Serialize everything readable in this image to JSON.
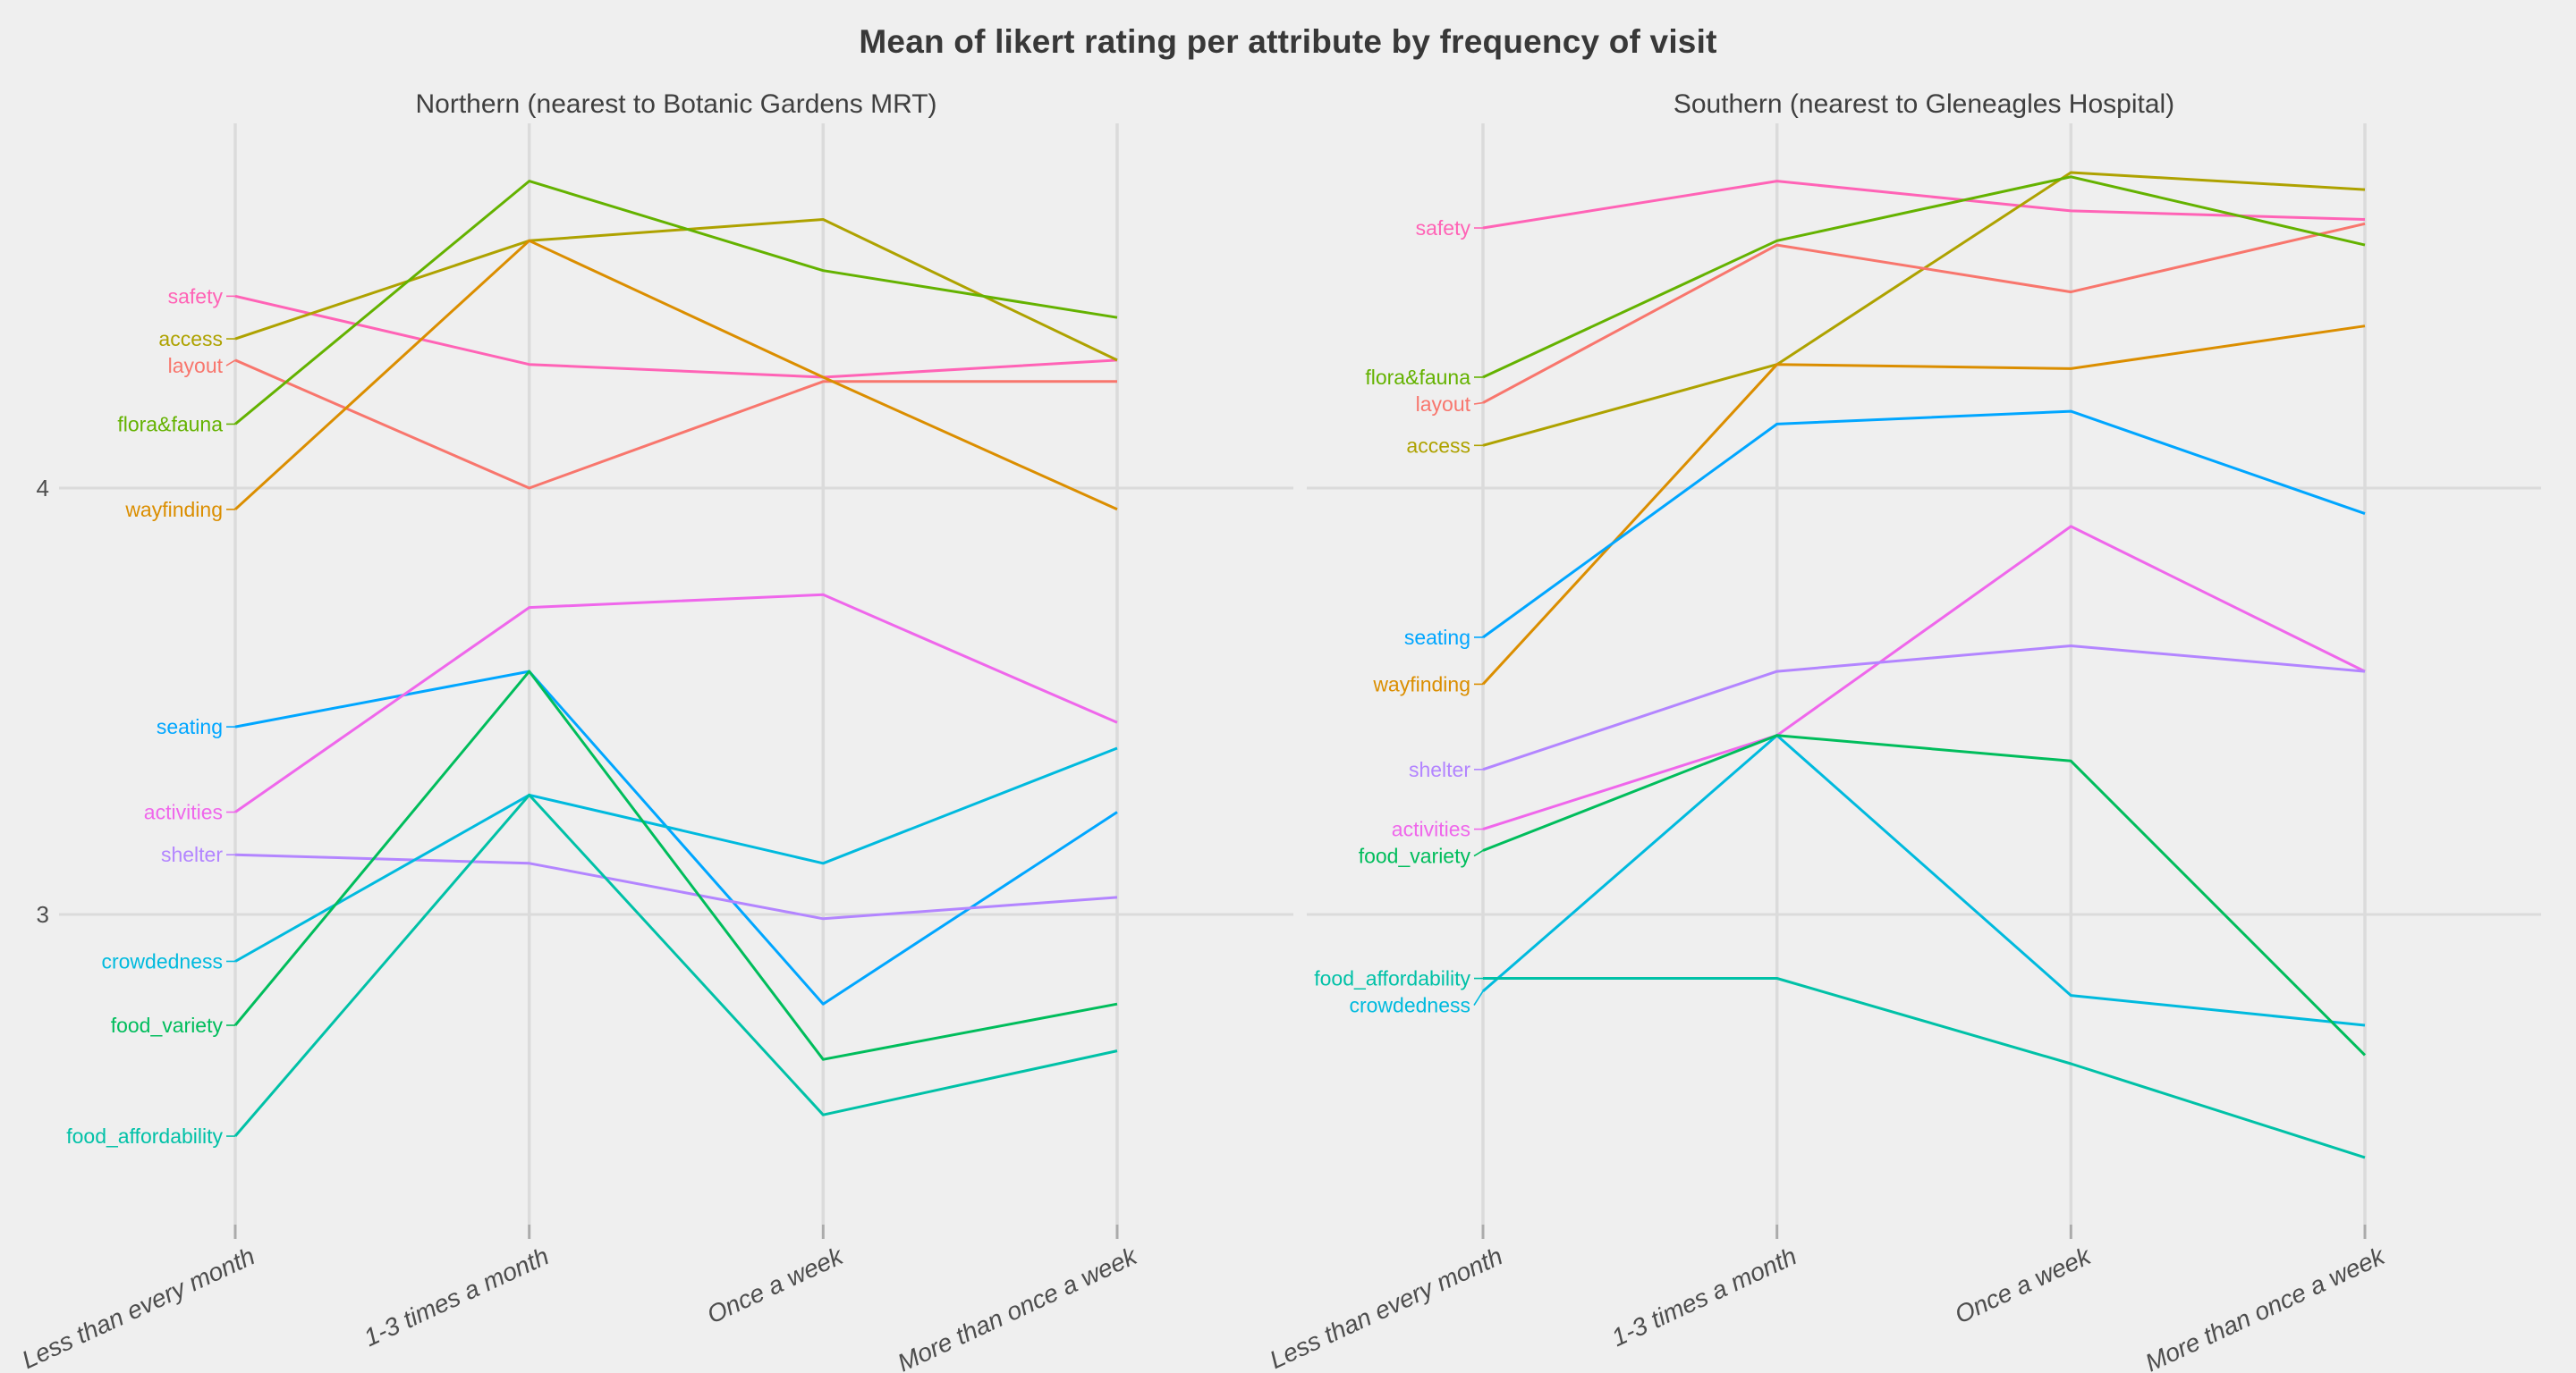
{
  "title": "Mean of likert rating per attribute by frequency of visit",
  "chart_data": {
    "type": "line",
    "title": "Mean of likert rating per attribute by frequency of visit",
    "categories": [
      "Less than every month",
      "1-3 times a month",
      "Once a week",
      "More than once a week"
    ],
    "xlabel": "",
    "ylabel": "",
    "y_ticks": [
      4,
      3
    ],
    "ylim": [
      2.35,
      4.85
    ],
    "grid": true,
    "legend_position": "direct-labels-at-first-point",
    "colors": {
      "grid": "#DBDBDB",
      "tick": "#ABABAB",
      "axis_text": "#4D4D4D",
      "title_text": "#383838"
    },
    "facets": [
      {
        "label": "Northern (nearest to Botanic Gardens MRT)",
        "series": [
          {
            "name": "safety",
            "color": "#FF63B6",
            "values": [
              4.45,
              4.29,
              4.26,
              4.3
            ]
          },
          {
            "name": "access",
            "color": "#AEA200",
            "values": [
              4.35,
              4.58,
              4.63,
              4.3
            ]
          },
          {
            "name": "layout",
            "color": "#F8766D",
            "values": [
              4.3,
              4.0,
              4.25,
              4.25
            ]
          },
          {
            "name": "flora&fauna",
            "color": "#64B200",
            "values": [
              4.15,
              4.72,
              4.51,
              4.4
            ]
          },
          {
            "name": "wayfinding",
            "color": "#DB8E00",
            "values": [
              3.95,
              4.58,
              4.26,
              3.95
            ]
          },
          {
            "name": "seating",
            "color": "#00A6FF",
            "values": [
              3.44,
              3.57,
              2.79,
              3.24
            ]
          },
          {
            "name": "activities",
            "color": "#EF67EB",
            "values": [
              3.24,
              3.72,
              3.75,
              3.45
            ]
          },
          {
            "name": "shelter",
            "color": "#B385FF",
            "values": [
              3.14,
              3.12,
              2.99,
              3.04
            ]
          },
          {
            "name": "crowdedness",
            "color": "#00BADE",
            "values": [
              2.89,
              3.28,
              3.12,
              3.39
            ]
          },
          {
            "name": "food_variety",
            "color": "#00BD5C",
            "values": [
              2.74,
              3.57,
              2.66,
              2.79
            ]
          },
          {
            "name": "food_affordability",
            "color": "#00C1A7",
            "values": [
              2.48,
              3.28,
              2.53,
              2.68
            ]
          }
        ]
      },
      {
        "label": "Southern (nearest to Gleneagles Hospital)",
        "series": [
          {
            "name": "safety",
            "color": "#FF63B6",
            "values": [
              4.61,
              4.72,
              4.65,
              4.63
            ]
          },
          {
            "name": "access",
            "color": "#AEA200",
            "values": [
              4.1,
              4.29,
              4.74,
              4.7
            ]
          },
          {
            "name": "layout",
            "color": "#F8766D",
            "values": [
              4.2,
              4.57,
              4.46,
              4.62
            ]
          },
          {
            "name": "flora&fauna",
            "color": "#64B200",
            "values": [
              4.26,
              4.58,
              4.73,
              4.57
            ]
          },
          {
            "name": "wayfinding",
            "color": "#DB8E00",
            "values": [
              3.54,
              4.29,
              4.28,
              4.38
            ]
          },
          {
            "name": "seating",
            "color": "#00A6FF",
            "values": [
              3.65,
              4.15,
              4.18,
              3.94
            ]
          },
          {
            "name": "activities",
            "color": "#EF67EB",
            "values": [
              3.2,
              3.42,
              3.91,
              3.57
            ]
          },
          {
            "name": "shelter",
            "color": "#B385FF",
            "values": [
              3.34,
              3.57,
              3.63,
              3.57
            ]
          },
          {
            "name": "crowdedness",
            "color": "#00BADE",
            "values": [
              2.82,
              3.42,
              2.81,
              2.74
            ]
          },
          {
            "name": "food_variety",
            "color": "#00BD5C",
            "values": [
              3.15,
              3.42,
              3.36,
              2.67
            ]
          },
          {
            "name": "food_affordability",
            "color": "#00C1A7",
            "values": [
              2.85,
              2.85,
              2.65,
              2.43
            ]
          }
        ]
      }
    ]
  }
}
